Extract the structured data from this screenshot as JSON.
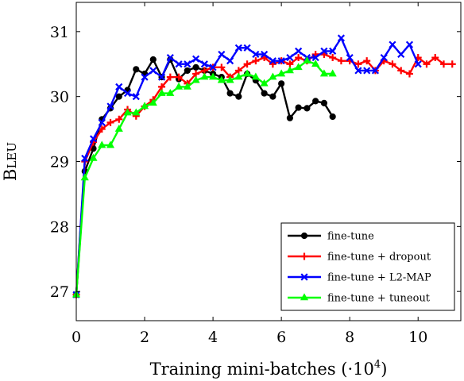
{
  "chart_data": {
    "type": "line",
    "xlabel": "Training mini-batches (·10",
    "xlabel_exp": "4",
    "xlabel_close": ")",
    "ylabel": "Bleu",
    "xlim": [
      0,
      11.25
    ],
    "ylim": [
      26.55,
      31.45
    ],
    "x_ticks": [
      0,
      2,
      4,
      6,
      8,
      10
    ],
    "y_ticks": [
      27,
      28,
      29,
      30,
      31
    ],
    "grid": false,
    "legend_position": "bottom-right",
    "series": [
      {
        "name": "fine-tune",
        "color": "#000000",
        "marker": "circle",
        "points": [
          [
            0,
            26.95
          ],
          [
            0.25,
            28.85
          ],
          [
            0.5,
            29.2
          ],
          [
            0.75,
            29.65
          ],
          [
            1.0,
            29.82
          ],
          [
            1.25,
            30.0
          ],
          [
            1.5,
            30.1
          ],
          [
            1.75,
            30.42
          ],
          [
            2.0,
            30.35
          ],
          [
            2.25,
            30.57
          ],
          [
            2.5,
            30.3
          ],
          [
            2.75,
            30.57
          ],
          [
            3.0,
            30.27
          ],
          [
            3.25,
            30.4
          ],
          [
            3.5,
            30.45
          ],
          [
            3.75,
            30.4
          ],
          [
            4.0,
            30.35
          ],
          [
            4.25,
            30.3
          ],
          [
            4.5,
            30.05
          ],
          [
            4.75,
            30.0
          ],
          [
            5.0,
            30.35
          ],
          [
            5.25,
            30.25
          ],
          [
            5.5,
            30.05
          ],
          [
            5.75,
            30.0
          ],
          [
            6.0,
            30.2
          ],
          [
            6.25,
            29.67
          ],
          [
            6.5,
            29.83
          ],
          [
            6.75,
            29.82
          ],
          [
            7.0,
            29.93
          ],
          [
            7.25,
            29.9
          ],
          [
            7.5,
            29.69
          ]
        ]
      },
      {
        "name": "fine-tune + dropout",
        "color": "#ff0000",
        "marker": "plus",
        "points": [
          [
            0,
            26.95
          ],
          [
            0.25,
            29.0
          ],
          [
            0.5,
            29.3
          ],
          [
            0.75,
            29.5
          ],
          [
            1.0,
            29.6
          ],
          [
            1.25,
            29.65
          ],
          [
            1.5,
            29.8
          ],
          [
            1.75,
            29.7
          ],
          [
            2.0,
            29.85
          ],
          [
            2.25,
            29.95
          ],
          [
            2.5,
            30.15
          ],
          [
            2.75,
            30.3
          ],
          [
            3.0,
            30.3
          ],
          [
            3.25,
            30.2
          ],
          [
            3.5,
            30.35
          ],
          [
            3.75,
            30.4
          ],
          [
            4.0,
            30.45
          ],
          [
            4.25,
            30.45
          ],
          [
            4.5,
            30.3
          ],
          [
            4.75,
            30.4
          ],
          [
            5.0,
            30.5
          ],
          [
            5.25,
            30.55
          ],
          [
            5.5,
            30.6
          ],
          [
            5.75,
            30.5
          ],
          [
            6.0,
            30.55
          ],
          [
            6.25,
            30.5
          ],
          [
            6.5,
            30.6
          ],
          [
            6.75,
            30.55
          ],
          [
            7.0,
            30.65
          ],
          [
            7.25,
            30.65
          ],
          [
            7.5,
            30.6
          ],
          [
            7.75,
            30.55
          ],
          [
            8.0,
            30.55
          ],
          [
            8.25,
            30.5
          ],
          [
            8.5,
            30.55
          ],
          [
            8.75,
            30.4
          ],
          [
            9.0,
            30.55
          ],
          [
            9.25,
            30.5
          ],
          [
            9.5,
            30.4
          ],
          [
            9.75,
            30.35
          ],
          [
            10.0,
            30.6
          ],
          [
            10.25,
            30.5
          ],
          [
            10.5,
            30.6
          ],
          [
            10.75,
            30.5
          ],
          [
            11.0,
            30.5
          ]
        ]
      },
      {
        "name": "fine-tune + L2-MAP",
        "color": "#0000ff",
        "marker": "cross",
        "points": [
          [
            0,
            26.95
          ],
          [
            0.25,
            29.05
          ],
          [
            0.5,
            29.35
          ],
          [
            0.75,
            29.6
          ],
          [
            1.0,
            29.85
          ],
          [
            1.25,
            30.15
          ],
          [
            1.5,
            30.05
          ],
          [
            1.75,
            30.0
          ],
          [
            2.0,
            30.3
          ],
          [
            2.25,
            30.4
          ],
          [
            2.5,
            30.3
          ],
          [
            2.75,
            30.6
          ],
          [
            3.0,
            30.5
          ],
          [
            3.25,
            30.5
          ],
          [
            3.5,
            30.58
          ],
          [
            3.75,
            30.5
          ],
          [
            4.0,
            30.45
          ],
          [
            4.25,
            30.65
          ],
          [
            4.5,
            30.55
          ],
          [
            4.75,
            30.75
          ],
          [
            5.0,
            30.75
          ],
          [
            5.25,
            30.65
          ],
          [
            5.5,
            30.65
          ],
          [
            5.75,
            30.55
          ],
          [
            6.0,
            30.55
          ],
          [
            6.25,
            30.6
          ],
          [
            6.5,
            30.7
          ],
          [
            6.75,
            30.6
          ],
          [
            7.0,
            30.6
          ],
          [
            7.25,
            30.7
          ],
          [
            7.5,
            30.7
          ],
          [
            7.75,
            30.9
          ],
          [
            8.0,
            30.6
          ],
          [
            8.25,
            30.4
          ],
          [
            8.5,
            30.4
          ],
          [
            8.75,
            30.4
          ],
          [
            9.0,
            30.6
          ],
          [
            9.25,
            30.8
          ],
          [
            9.5,
            30.65
          ],
          [
            9.75,
            30.8
          ],
          [
            10.0,
            30.5
          ]
        ]
      },
      {
        "name": "fine-tune + tuneout",
        "color": "#00ff00",
        "marker": "triangle",
        "points": [
          [
            0,
            26.95
          ],
          [
            0.25,
            28.75
          ],
          [
            0.5,
            29.05
          ],
          [
            0.75,
            29.25
          ],
          [
            1.0,
            29.25
          ],
          [
            1.25,
            29.5
          ],
          [
            1.5,
            29.75
          ],
          [
            1.75,
            29.75
          ],
          [
            2.0,
            29.85
          ],
          [
            2.25,
            29.9
          ],
          [
            2.5,
            30.05
          ],
          [
            2.75,
            30.05
          ],
          [
            3.0,
            30.15
          ],
          [
            3.25,
            30.15
          ],
          [
            3.5,
            30.25
          ],
          [
            3.75,
            30.3
          ],
          [
            4.0,
            30.3
          ],
          [
            4.25,
            30.25
          ],
          [
            4.5,
            30.25
          ],
          [
            4.75,
            30.3
          ],
          [
            5.0,
            30.35
          ],
          [
            5.25,
            30.3
          ],
          [
            5.5,
            30.2
          ],
          [
            5.75,
            30.3
          ],
          [
            6.0,
            30.35
          ],
          [
            6.25,
            30.4
          ],
          [
            6.5,
            30.45
          ],
          [
            6.75,
            30.55
          ],
          [
            7.0,
            30.5
          ],
          [
            7.25,
            30.35
          ],
          [
            7.5,
            30.35
          ]
        ]
      }
    ]
  }
}
